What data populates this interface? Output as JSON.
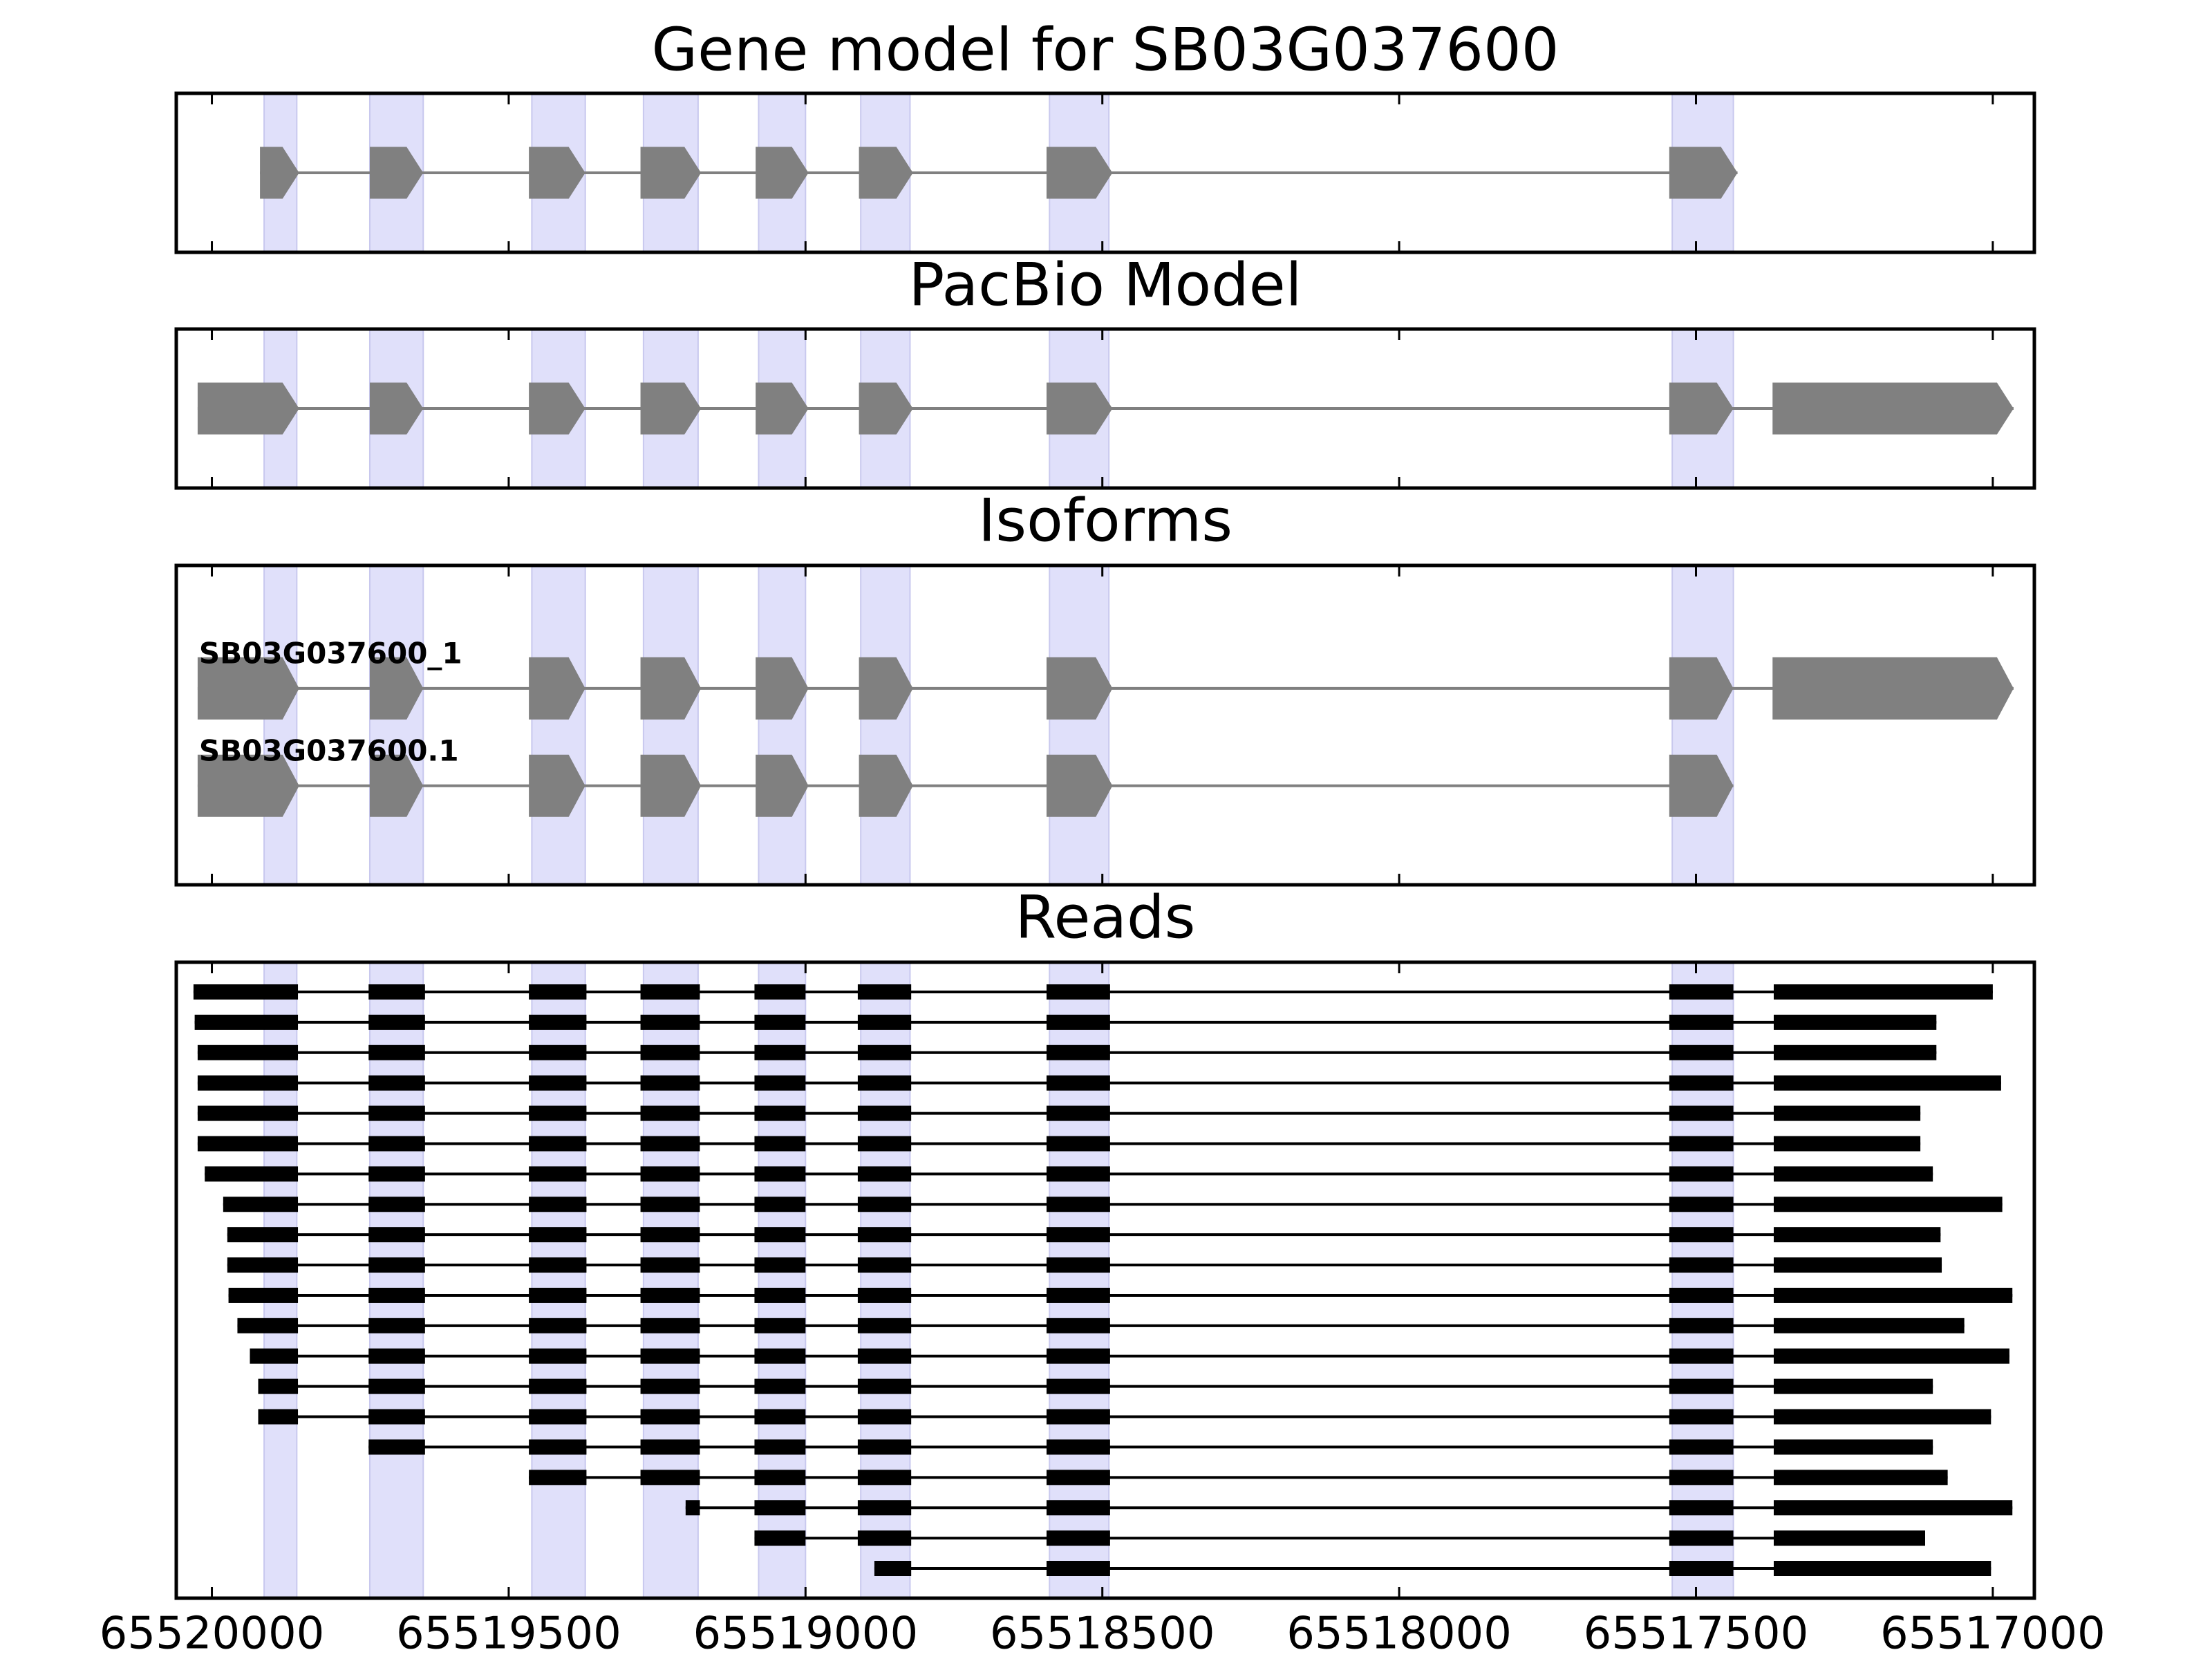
{
  "chart_data": {
    "type": "gene_tracks",
    "xlim": [
      65520060,
      65516930
    ],
    "xticks": [
      65520000,
      65519500,
      65519000,
      65518500,
      65518000,
      65517500,
      65517000
    ],
    "highlight_color": "#e0e0fa",
    "exon_color": "#808080",
    "read_color": "#000000",
    "highlights": [
      [
        65519912,
        65519857
      ],
      [
        65519734,
        65519644
      ],
      [
        65519461,
        65519371
      ],
      [
        65519273,
        65519181
      ],
      [
        65519079,
        65519000
      ],
      [
        65518907,
        65518824
      ],
      [
        65518589,
        65518489
      ],
      [
        65517540,
        65517437
      ]
    ],
    "panels": [
      {
        "type": "models",
        "title": "Gene model for SB03G037600",
        "models": [
          {
            "exons": [
              [
                65519919,
                65519853
              ],
              [
                65519734,
                65519644
              ],
              [
                65519466,
                65519371
              ],
              [
                65519278,
                65519176
              ],
              [
                65519084,
                65518995
              ],
              [
                65518910,
                65518819
              ],
              [
                65518594,
                65518483
              ],
              [
                65517545,
                65517430
              ]
            ]
          }
        ]
      },
      {
        "type": "models",
        "title": "PacBio Model",
        "models": [
          {
            "exons": [
              [
                65520024,
                65519853
              ],
              [
                65519734,
                65519644
              ],
              [
                65519466,
                65519371
              ],
              [
                65519278,
                65519176
              ],
              [
                65519084,
                65518995
              ],
              [
                65518910,
                65518819
              ],
              [
                65518594,
                65518483
              ],
              [
                65517545,
                65517437
              ],
              [
                65517371,
                65516965
              ]
            ]
          }
        ]
      },
      {
        "type": "models",
        "title": "Isoforms",
        "models": [
          {
            "name": "SB03G037600_1",
            "exons": [
              [
                65520024,
                65519853
              ],
              [
                65519734,
                65519644
              ],
              [
                65519466,
                65519371
              ],
              [
                65519278,
                65519176
              ],
              [
                65519084,
                65518995
              ],
              [
                65518910,
                65518819
              ],
              [
                65518594,
                65518483
              ],
              [
                65517545,
                65517437
              ],
              [
                65517371,
                65516965
              ]
            ]
          },
          {
            "name": "SB03G037600.1",
            "exons": [
              [
                65520024,
                65519853
              ],
              [
                65519734,
                65519644
              ],
              [
                65519466,
                65519371
              ],
              [
                65519278,
                65519176
              ],
              [
                65519084,
                65518995
              ],
              [
                65518910,
                65518819
              ],
              [
                65518594,
                65518483
              ],
              [
                65517545,
                65517437
              ]
            ]
          }
        ]
      },
      {
        "type": "reads",
        "title": "Reads",
        "exons": [
          [
            65520100,
            65519855
          ],
          [
            65519736,
            65519641
          ],
          [
            65519466,
            65519369
          ],
          [
            65519278,
            65519178
          ],
          [
            65519086,
            65519000
          ],
          [
            65518912,
            65518822
          ],
          [
            65518594,
            65518487
          ],
          [
            65517545,
            65517437
          ],
          [
            65517369,
            65516900
          ]
        ],
        "reads": [
          {
            "start": 65520031,
            "end": 65517000
          },
          {
            "start": 65520029,
            "end": 65517095
          },
          {
            "start": 65520024,
            "end": 65517095
          },
          {
            "start": 65520024,
            "end": 65516986
          },
          {
            "start": 65520024,
            "end": 65517122
          },
          {
            "start": 65520024,
            "end": 65517122
          },
          {
            "start": 65520012,
            "end": 65517101
          },
          {
            "start": 65519981,
            "end": 65516984
          },
          {
            "start": 65519974,
            "end": 65517088
          },
          {
            "start": 65519974,
            "end": 65517086
          },
          {
            "start": 65519972,
            "end": 65516967
          },
          {
            "start": 65519957,
            "end": 65517048
          },
          {
            "start": 65519936,
            "end": 65516972
          },
          {
            "start": 65519922,
            "end": 65517101
          },
          {
            "start": 65519922,
            "end": 65517003
          },
          {
            "start": 65519736,
            "end": 65517101
          },
          {
            "start": 65519466,
            "end": 65517076
          },
          {
            "start": 65519202,
            "end": 65516967
          },
          {
            "start": 65519086,
            "end": 65517114
          },
          {
            "start": 65518884,
            "end": 65517003
          }
        ]
      }
    ]
  }
}
